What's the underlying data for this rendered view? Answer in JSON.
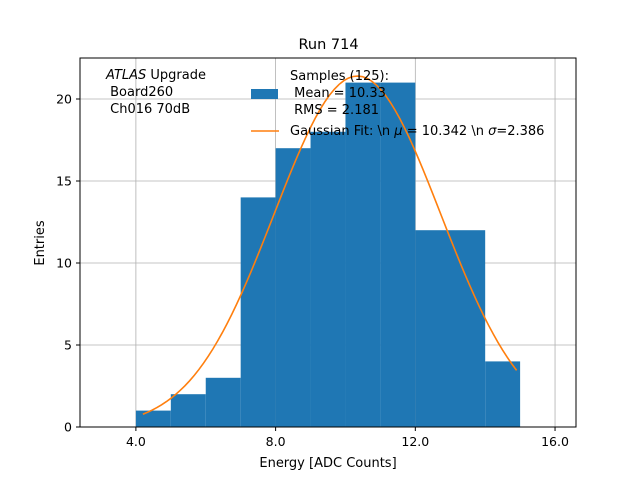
{
  "chart_data": {
    "type": "bar",
    "title": "Run 714",
    "xlabel": "Energy [ADC Counts]",
    "ylabel": "Entries",
    "xlim": [
      2.4,
      16.6
    ],
    "ylim": [
      0,
      22.5
    ],
    "grid": true,
    "x_ticks": [
      "4.0",
      "8.0",
      "12.0",
      "16.0"
    ],
    "x_tick_values": [
      4,
      8,
      12,
      16
    ],
    "y_ticks": [
      "0",
      "5",
      "10",
      "15",
      "20"
    ],
    "y_tick_values": [
      0,
      5,
      10,
      15,
      20
    ],
    "bins": [
      {
        "x0": 4,
        "x1": 5,
        "value": 1
      },
      {
        "x0": 5,
        "x1": 6,
        "value": 2
      },
      {
        "x0": 6,
        "x1": 7,
        "value": 3
      },
      {
        "x0": 7,
        "x1": 8,
        "value": 14
      },
      {
        "x0": 8,
        "x1": 9,
        "value": 17
      },
      {
        "x0": 9,
        "x1": 10,
        "value": 18
      },
      {
        "x0": 10,
        "x1": 11,
        "value": 21
      },
      {
        "x0": 11,
        "x1": 12,
        "value": 21
      },
      {
        "x0": 12,
        "x1": 14,
        "value": 12
      },
      {
        "x0": 14,
        "x1": 15,
        "value": 4
      }
    ],
    "fit": {
      "amplitude": 21.4,
      "mu": 10.342,
      "sigma": 2.386,
      "x_range": [
        4.2,
        14.9
      ]
    },
    "colors": {
      "bars": "#1f77b4",
      "fit": "#ff7f0e",
      "grid": "#b0b0b0"
    },
    "legend": {
      "placement": "top-right",
      "entries": [
        {
          "kind": "patch",
          "lines": [
            "Samples (125):",
            " Mean = 10.33",
            " RMS = 2.181"
          ]
        },
        {
          "kind": "line",
          "label": "Gaussian Fit: \\n $\\mu$ = 10.342 \\n $\\sigma$=2.386"
        }
      ]
    },
    "annotation": {
      "italic": "ATLAS",
      "rest": " Upgrade",
      "lines": [
        " Board260",
        " Ch016 70dB"
      ]
    }
  }
}
